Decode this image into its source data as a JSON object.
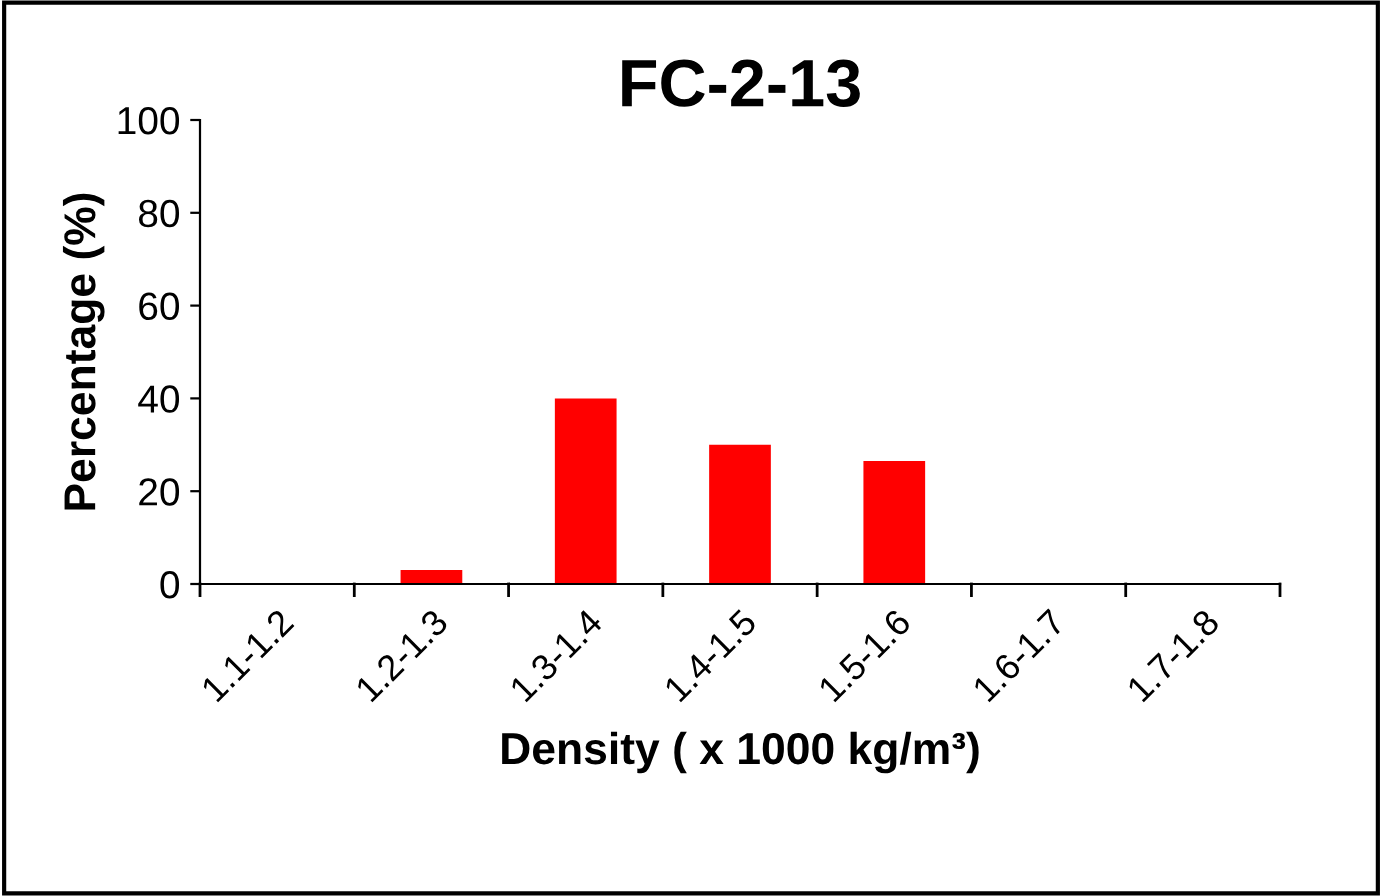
{
  "chart_data": {
    "type": "bar",
    "title": "FC-2-13",
    "xlabel": "Density ( x 1000 kg/m³)",
    "ylabel": "Percentage (%)",
    "categories": [
      "1.1-1.2",
      "1.2-1.3",
      "1.3-1.4",
      "1.4-1.5",
      "1.5-1.6",
      "1.6-1.7",
      "1.7-1.8"
    ],
    "values": [
      0,
      3,
      40,
      30,
      26.5,
      0,
      0
    ],
    "color": "#ff0000",
    "ylim": [
      0,
      100
    ],
    "yticks": [
      0,
      20,
      40,
      60,
      80,
      100
    ],
    "grid": false,
    "legend": false
  }
}
